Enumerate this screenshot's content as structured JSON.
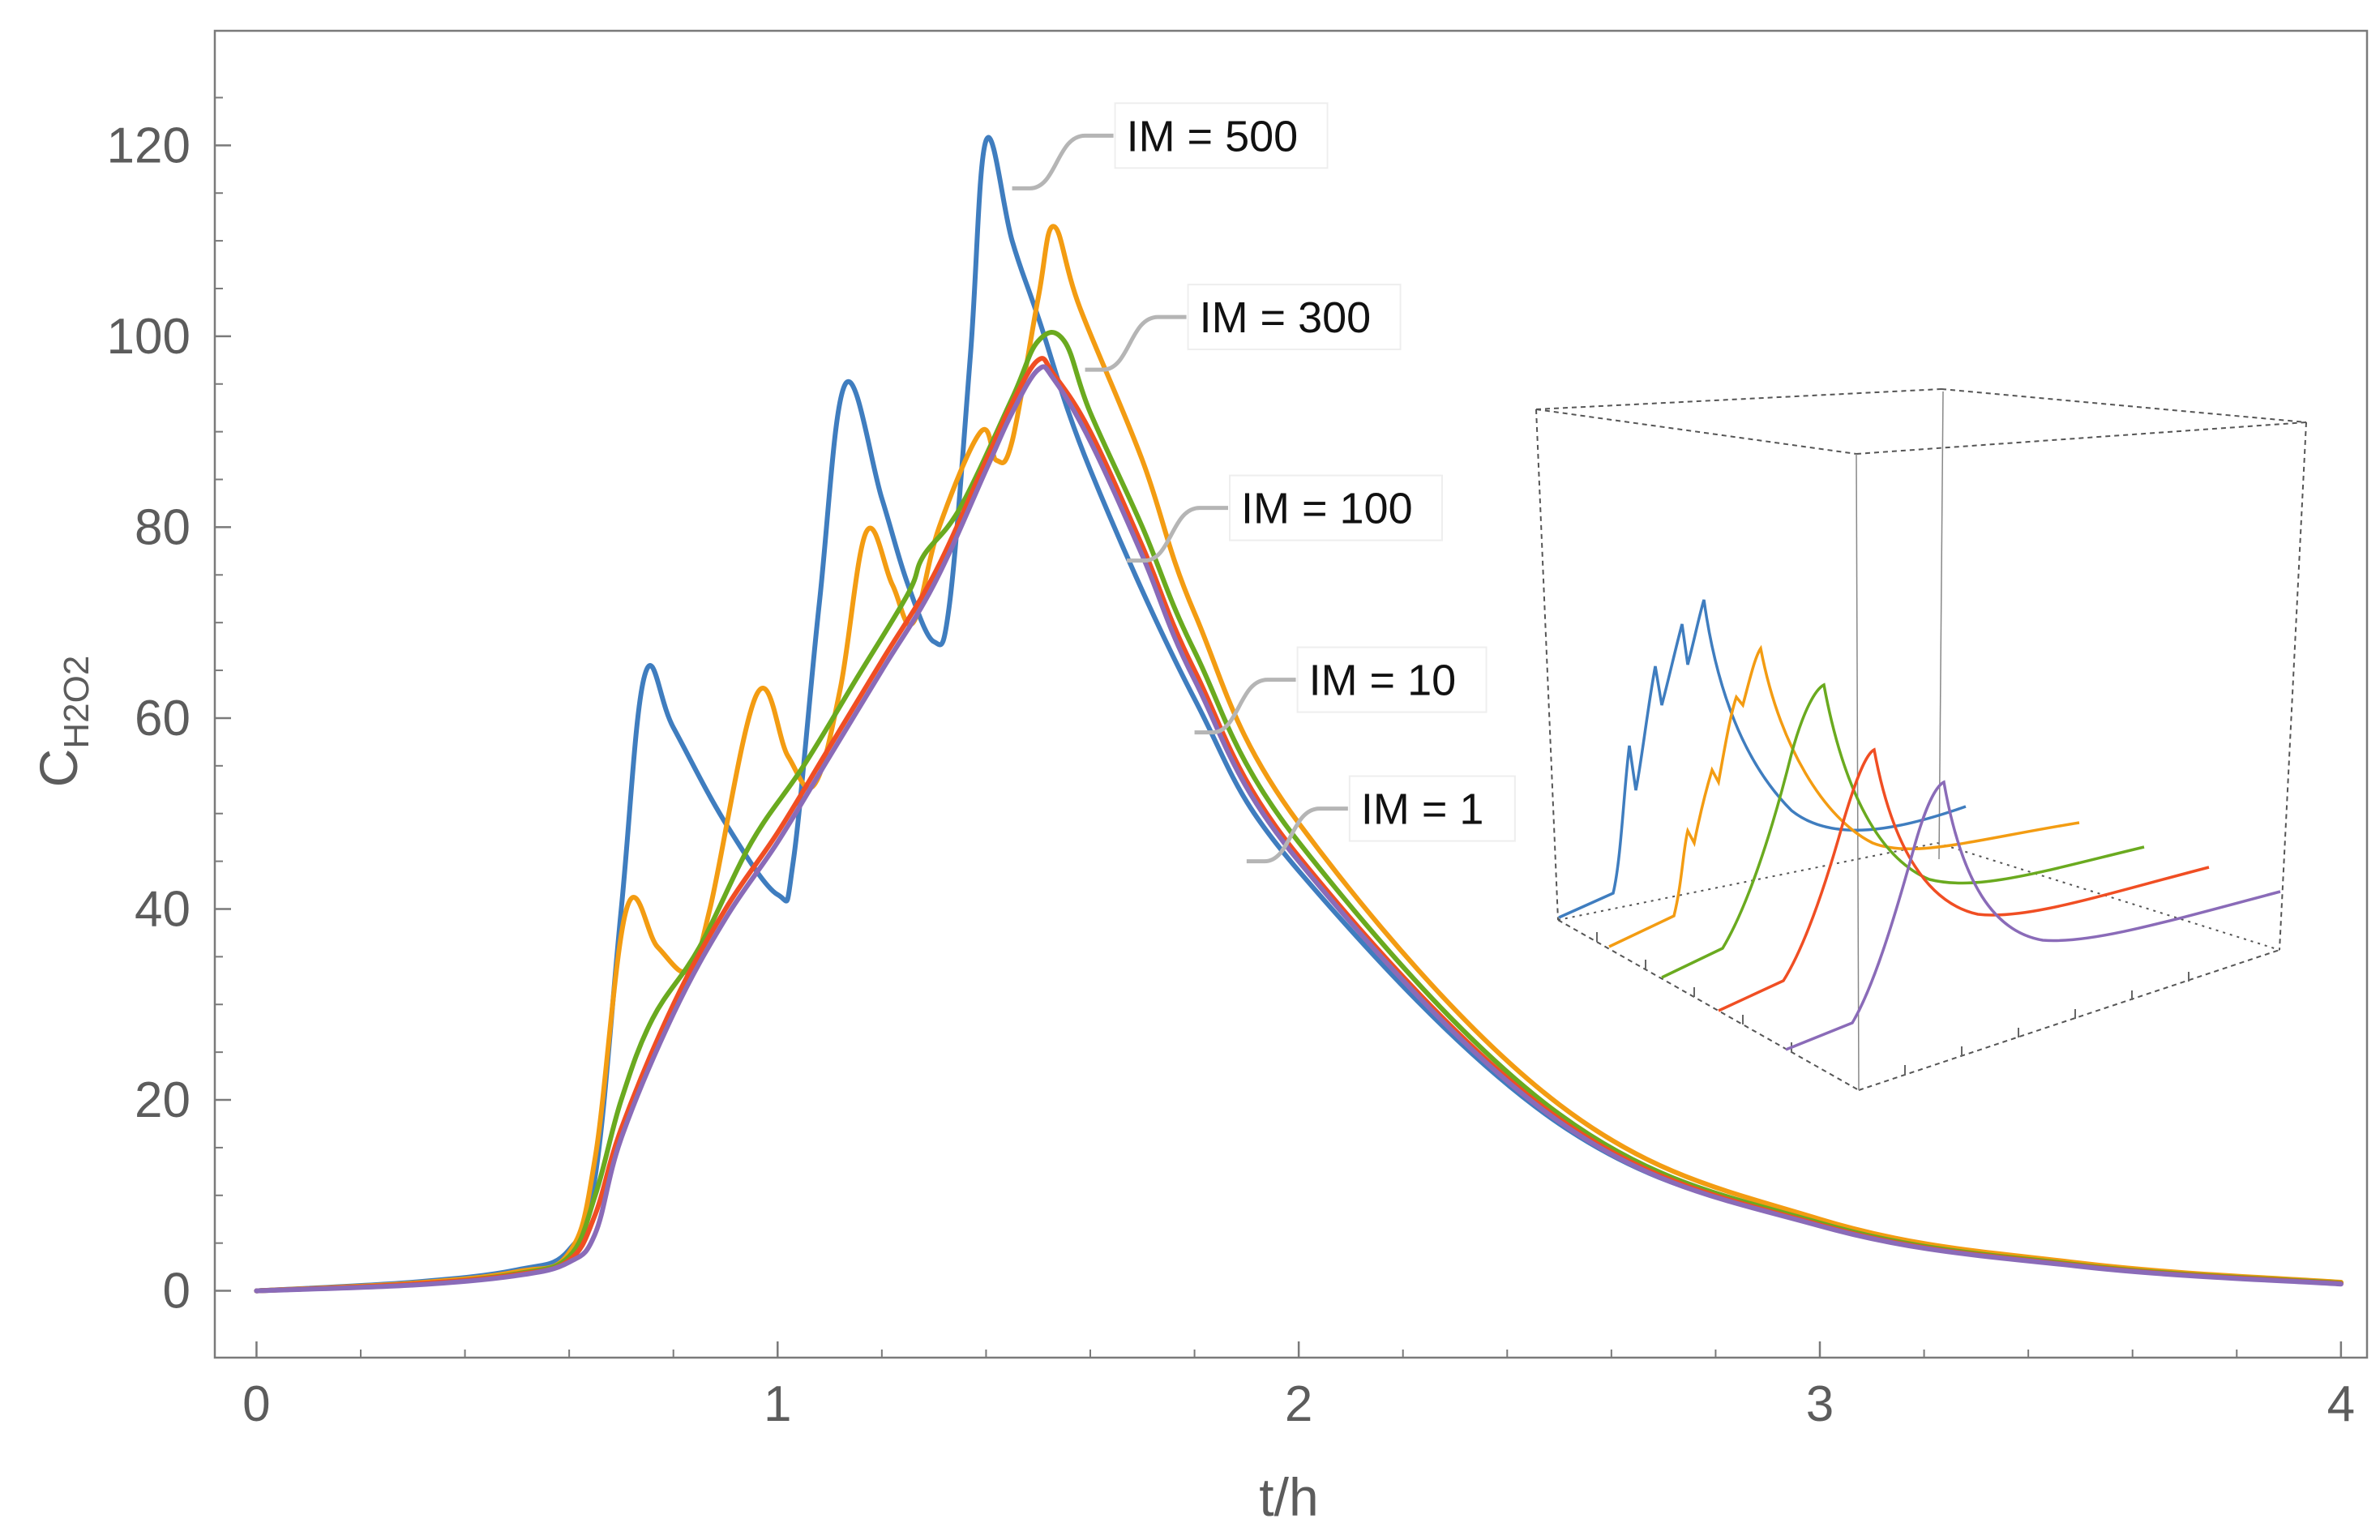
{
  "chart_data": {
    "type": "line",
    "xlabel": "t/h",
    "ylabel_main": "C",
    "ylabel_sub": "H2O2",
    "xlim": [
      -0.08,
      4.05
    ],
    "ylim": [
      -7,
      132
    ],
    "x_ticks": [
      "0",
      "1",
      "2",
      "3",
      "4"
    ],
    "y_ticks": [
      "0",
      "20",
      "40",
      "60",
      "80",
      "100",
      "120"
    ],
    "series": [
      {
        "name": "IM = 500",
        "color": "#3f7dbf",
        "points": [
          [
            0,
            0
          ],
          [
            0.3,
            0.9
          ],
          [
            0.5,
            2.2
          ],
          [
            0.6,
            4.3
          ],
          [
            0.65,
            12
          ],
          [
            0.7,
            40
          ],
          [
            0.745,
            64.5
          ],
          [
            0.8,
            59
          ],
          [
            0.9,
            49
          ],
          [
            1.0,
            41.5
          ],
          [
            1.03,
            45
          ],
          [
            1.08,
            72
          ],
          [
            1.13,
            95
          ],
          [
            1.2,
            83
          ],
          [
            1.25,
            74
          ],
          [
            1.3,
            68
          ],
          [
            1.33,
            72
          ],
          [
            1.37,
            98
          ],
          [
            1.4,
            120.5
          ],
          [
            1.45,
            110
          ],
          [
            1.5,
            102
          ],
          [
            1.6,
            86
          ],
          [
            1.8,
            62
          ],
          [
            2.0,
            44
          ],
          [
            2.5,
            17.5
          ],
          [
            3.0,
            6.9
          ],
          [
            3.5,
            2.6
          ],
          [
            4.0,
            0.8
          ]
        ]
      },
      {
        "name": "IM = 300",
        "color": "#f39c12",
        "points": [
          [
            0,
            0
          ],
          [
            0.3,
            0.8
          ],
          [
            0.5,
            2
          ],
          [
            0.6,
            4
          ],
          [
            0.65,
            14
          ],
          [
            0.71,
            40
          ],
          [
            0.77,
            36
          ],
          [
            0.83,
            33.5
          ],
          [
            0.87,
            40
          ],
          [
            0.96,
            62.5
          ],
          [
            1.02,
            56
          ],
          [
            1.07,
            53
          ],
          [
            1.12,
            63
          ],
          [
            1.17,
            79.5
          ],
          [
            1.22,
            74
          ],
          [
            1.26,
            70
          ],
          [
            1.31,
            80
          ],
          [
            1.39,
            90
          ],
          [
            1.42,
            87
          ],
          [
            1.45,
            89
          ],
          [
            1.5,
            104
          ],
          [
            1.53,
            111.5
          ],
          [
            1.58,
            103
          ],
          [
            1.7,
            87
          ],
          [
            1.8,
            71
          ],
          [
            2.0,
            49
          ],
          [
            2.5,
            19.5
          ],
          [
            3.0,
            7.5
          ],
          [
            3.5,
            2.9
          ],
          [
            4.0,
            0.9
          ]
        ]
      },
      {
        "name": "IM = 100",
        "color": "#6aaa1f",
        "points": [
          [
            0,
            0
          ],
          [
            0.3,
            0.7
          ],
          [
            0.5,
            1.8
          ],
          [
            0.6,
            3.6
          ],
          [
            0.65,
            10
          ],
          [
            0.7,
            20
          ],
          [
            0.76,
            28.5
          ],
          [
            0.85,
            36
          ],
          [
            0.95,
            47
          ],
          [
            1.05,
            55
          ],
          [
            1.15,
            64
          ],
          [
            1.25,
            73
          ],
          [
            1.28,
            77
          ],
          [
            1.35,
            82
          ],
          [
            1.45,
            93.5
          ],
          [
            1.5,
            99.5
          ],
          [
            1.55,
            99.5
          ],
          [
            1.6,
            92
          ],
          [
            1.7,
            80
          ],
          [
            1.8,
            67
          ],
          [
            2.0,
            47
          ],
          [
            2.5,
            18.5
          ],
          [
            3.0,
            7.1
          ],
          [
            3.5,
            2.7
          ],
          [
            4.0,
            0.8
          ]
        ]
      },
      {
        "name": "IM = 10",
        "color": "#f04e23",
        "points": [
          [
            0,
            0
          ],
          [
            0.3,
            0.7
          ],
          [
            0.5,
            1.7
          ],
          [
            0.6,
            3.2
          ],
          [
            0.65,
            8
          ],
          [
            0.7,
            17
          ],
          [
            0.8,
            30
          ],
          [
            0.9,
            40
          ],
          [
            1.0,
            48
          ],
          [
            1.1,
            57
          ],
          [
            1.2,
            66
          ],
          [
            1.3,
            75
          ],
          [
            1.4,
            87
          ],
          [
            1.45,
            93
          ],
          [
            1.5,
            97.5
          ],
          [
            1.53,
            96
          ],
          [
            1.6,
            90
          ],
          [
            1.7,
            78
          ],
          [
            1.8,
            65
          ],
          [
            2.0,
            45.5
          ],
          [
            2.5,
            18
          ],
          [
            3.0,
            6.9
          ],
          [
            3.5,
            2.6
          ],
          [
            4.0,
            0.75
          ]
        ]
      },
      {
        "name": "IM = 1",
        "color": "#8a6bb8",
        "points": [
          [
            0,
            0
          ],
          [
            0.3,
            0.6
          ],
          [
            0.5,
            1.6
          ],
          [
            0.6,
            3
          ],
          [
            0.65,
            6
          ],
          [
            0.7,
            16
          ],
          [
            0.8,
            29
          ],
          [
            0.9,
            39
          ],
          [
            1.0,
            47
          ],
          [
            1.1,
            56
          ],
          [
            1.2,
            65
          ],
          [
            1.3,
            74
          ],
          [
            1.4,
            86
          ],
          [
            1.45,
            92
          ],
          [
            1.5,
            96.5
          ],
          [
            1.53,
            95.5
          ],
          [
            1.6,
            89
          ],
          [
            1.7,
            77
          ],
          [
            1.8,
            64
          ],
          [
            2.0,
            45
          ],
          [
            2.5,
            17.7
          ],
          [
            3.0,
            6.8
          ],
          [
            3.5,
            2.55
          ],
          [
            4.0,
            0.7
          ]
        ]
      }
    ],
    "callouts": [
      {
        "label": "IM = 500",
        "anchor": [
          1.45,
          115.5
        ]
      },
      {
        "label": "IM = 300",
        "anchor": [
          1.59,
          96.5
        ]
      },
      {
        "label": "IM = 100",
        "anchor": [
          1.67,
          76.5
        ]
      },
      {
        "label": "IM = 10",
        "anchor": [
          1.8,
          58.5
        ]
      },
      {
        "label": "IM = 1",
        "anchor": [
          1.9,
          45
        ]
      }
    ],
    "inset": {
      "type": "3d-waterfall",
      "colors": [
        "#3f7dbf",
        "#f39c12",
        "#6aaa1f",
        "#f04e23",
        "#8a6bb8"
      ]
    }
  }
}
